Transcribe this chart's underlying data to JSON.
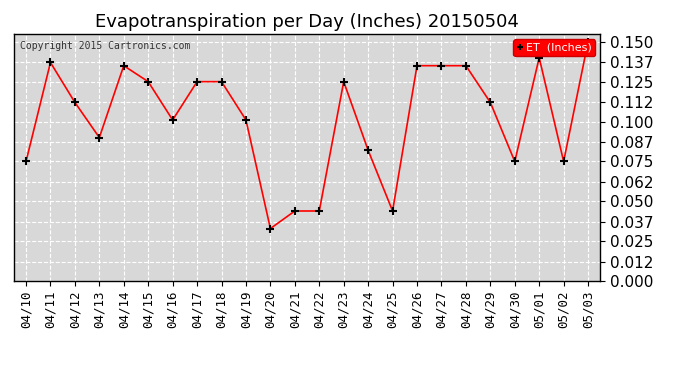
{
  "title": "Evapotranspiration per Day (Inches) 20150504",
  "copyright_text": "Copyright 2015 Cartronics.com",
  "legend_label": "ET  (Inches)",
  "dates": [
    "04/10",
    "04/11",
    "04/12",
    "04/13",
    "04/14",
    "04/15",
    "04/16",
    "04/17",
    "04/18",
    "04/19",
    "04/20",
    "04/21",
    "04/22",
    "04/23",
    "04/24",
    "04/25",
    "04/26",
    "04/27",
    "04/28",
    "04/29",
    "04/30",
    "05/01",
    "05/02",
    "05/03"
  ],
  "values": [
    0.075,
    0.137,
    0.112,
    0.09,
    0.135,
    0.125,
    0.101,
    0.125,
    0.125,
    0.101,
    0.033,
    0.044,
    0.044,
    0.125,
    0.082,
    0.044,
    0.135,
    0.135,
    0.135,
    0.112,
    0.075,
    0.14,
    0.075,
    0.15
  ],
  "ylim": [
    0.0,
    0.155
  ],
  "yticks": [
    0.0,
    0.012,
    0.025,
    0.037,
    0.05,
    0.062,
    0.075,
    0.087,
    0.1,
    0.112,
    0.125,
    0.137,
    0.15
  ],
  "line_color": "#ff0000",
  "marker": "+",
  "marker_color": "#000000",
  "plot_bg_color": "#d8d8d8",
  "fig_bg_color": "#ffffff",
  "grid_color": "#ffffff",
  "title_fontsize": 13,
  "tick_fontsize": 9,
  "ylabel_fontsize": 11,
  "legend_bg": "#ff0000",
  "legend_text_color": "#ffffff"
}
